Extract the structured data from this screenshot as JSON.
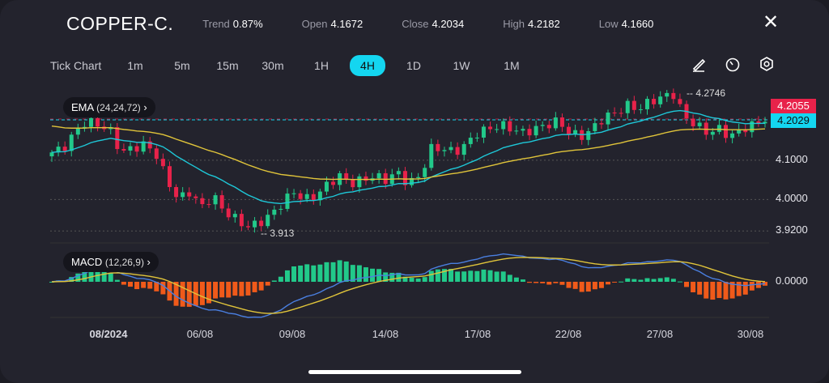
{
  "header": {
    "title": "COPPER-C.",
    "trend_label": "Trend",
    "trend": "0.87%",
    "open_label": "Open",
    "open": "4.1672",
    "close_label": "Close",
    "close": "4.2034",
    "high_label": "High",
    "high": "4.2182",
    "low_label": "Low",
    "low": "4.1660"
  },
  "timeframes": [
    "Tick Chart",
    "1m",
    "5m",
    "15m",
    "30m",
    "1H",
    "4H",
    "1D",
    "1W",
    "1M"
  ],
  "active_timeframe": "4H",
  "ema": {
    "label": "EMA",
    "params": "(24,24,72)"
  },
  "macd": {
    "label": "MACD",
    "params": "(12,26,9)"
  },
  "price_axis": {
    "labels": [
      "4.1000",
      "4.0000",
      "3.9200"
    ],
    "zero": "0.0000",
    "ask": "4.2055",
    "bid": "4.2029",
    "max_label": "4.2746",
    "min_label": "3.913"
  },
  "colors": {
    "up": "#22c98a",
    "down": "#e8224a",
    "ema_fast": "#1ec8d8",
    "ema_slow": "#e0c43a",
    "macd": "#4a7fe0",
    "signal": "#e0c43a",
    "hist_pos": "#22c98a",
    "hist_neg": "#f05a1a",
    "accent": "#14d6f0"
  },
  "chart_data": {
    "type": "candlestick",
    "x_labels": [
      "08/2024",
      "06/08",
      "09/08",
      "14/08",
      "17/08",
      "22/08",
      "27/08",
      "30/08"
    ],
    "ylim": [
      3.9,
      4.3
    ],
    "price_path": [
      4.12,
      4.13,
      4.17,
      4.2,
      4.19,
      4.18,
      4.12,
      4.13,
      4.14,
      4.12,
      4.05,
      4.0,
      4.02,
      3.98,
      4.01,
      3.97,
      3.95,
      3.93,
      3.94,
      3.96,
      3.99,
      4.02,
      4.0,
      4.01,
      4.04,
      4.06,
      4.04,
      4.05,
      4.06,
      4.05,
      4.07,
      4.04,
      4.06,
      4.13,
      4.13,
      4.12,
      4.14,
      4.17,
      4.18,
      4.19,
      4.18,
      4.17,
      4.18,
      4.19,
      4.2,
      4.17,
      4.16,
      4.18,
      4.21,
      4.22,
      4.24,
      4.23,
      4.25,
      4.26,
      4.27,
      4.21,
      4.19,
      4.17,
      4.18,
      4.16,
      4.18,
      4.19,
      4.205
    ]
  }
}
